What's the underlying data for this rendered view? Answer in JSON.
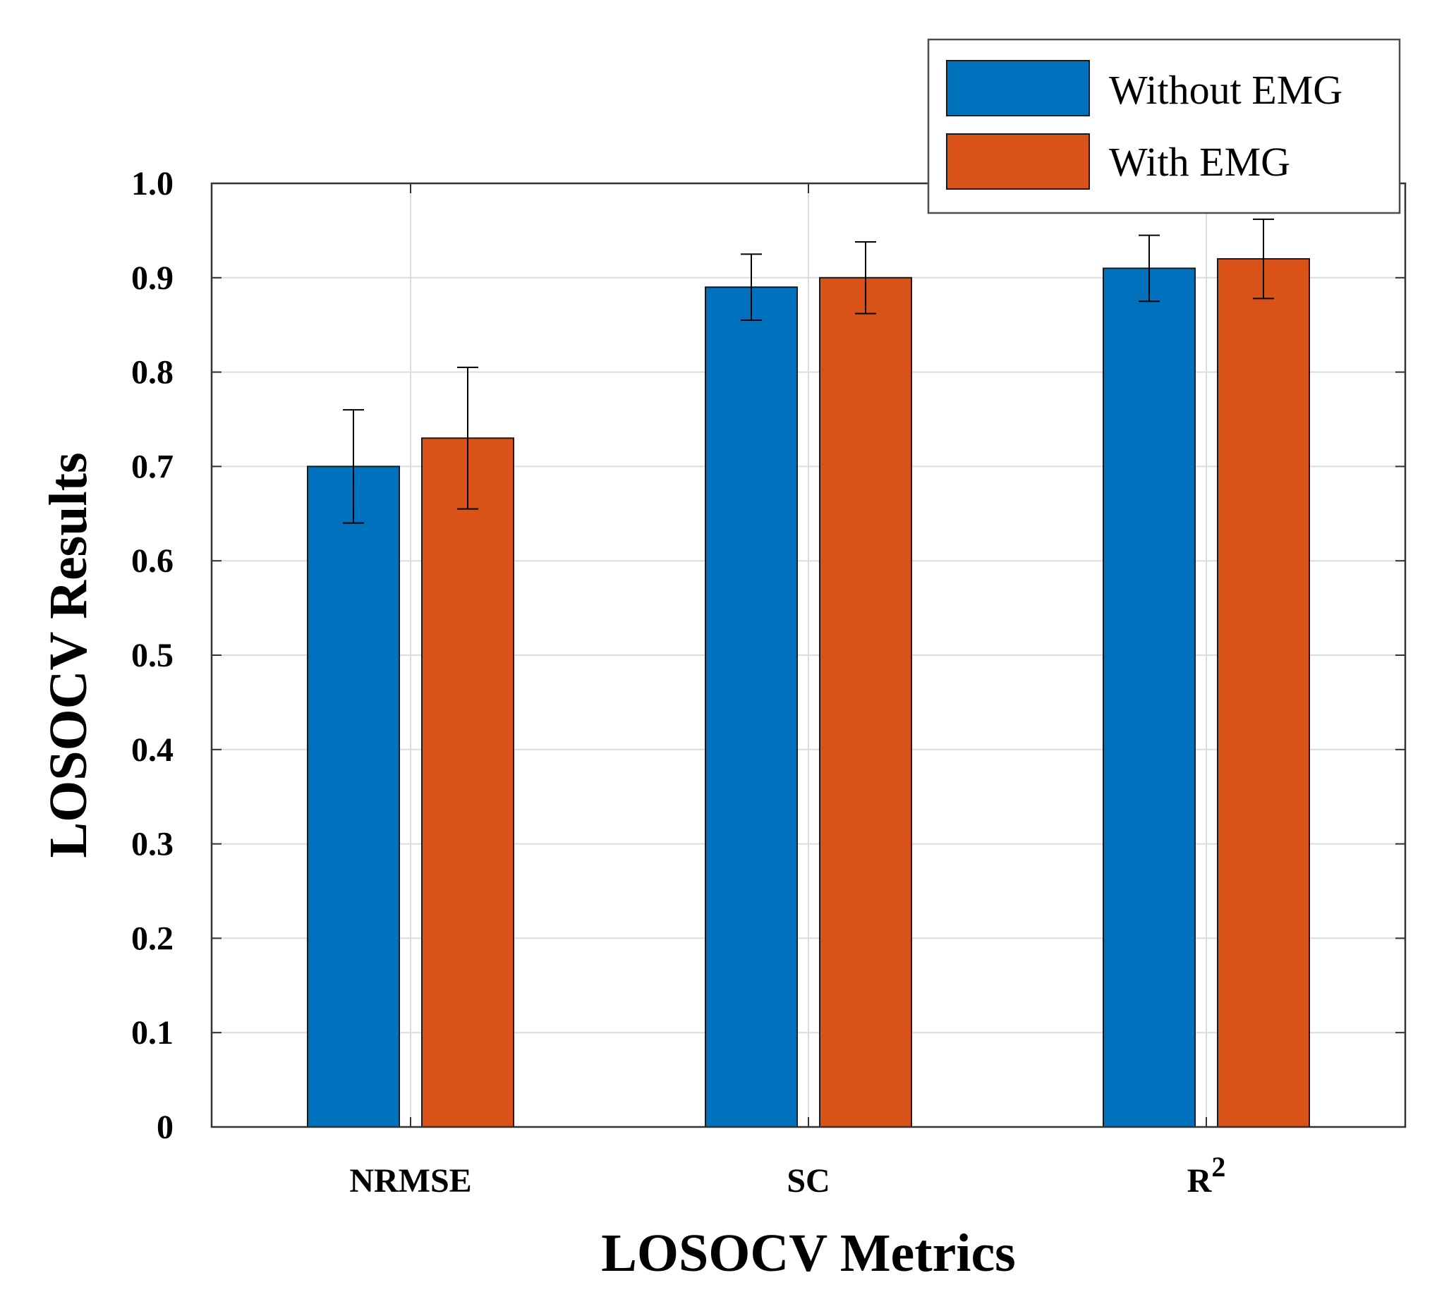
{
  "chart_data": {
    "type": "bar",
    "title": "",
    "xlabel": "LOSOCV Metrics",
    "ylabel": "LOSOCV Results",
    "categories": [
      {
        "base": "NRMSE",
        "sup": ""
      },
      {
        "base": "SC",
        "sup": ""
      },
      {
        "base": "R",
        "sup": "2"
      }
    ],
    "series": [
      {
        "name": "Without EMG",
        "color": "#0072BD",
        "values": [
          0.7,
          0.89,
          0.91
        ],
        "error_low": [
          0.64,
          0.855,
          0.875
        ],
        "error_high": [
          0.76,
          0.925,
          0.945
        ]
      },
      {
        "name": "With EMG",
        "color": "#D95319",
        "values": [
          0.73,
          0.9,
          0.92
        ],
        "error_low": [
          0.655,
          0.862,
          0.878
        ],
        "error_high": [
          0.805,
          0.938,
          0.962
        ]
      }
    ],
    "ylim": [
      0,
      1.0
    ],
    "yticks": [
      "0",
      "0.1",
      "0.2",
      "0.3",
      "0.4",
      "0.5",
      "0.6",
      "0.7",
      "0.8",
      "0.9",
      "1.0"
    ],
    "grid": true,
    "legend_position": "top-right"
  }
}
